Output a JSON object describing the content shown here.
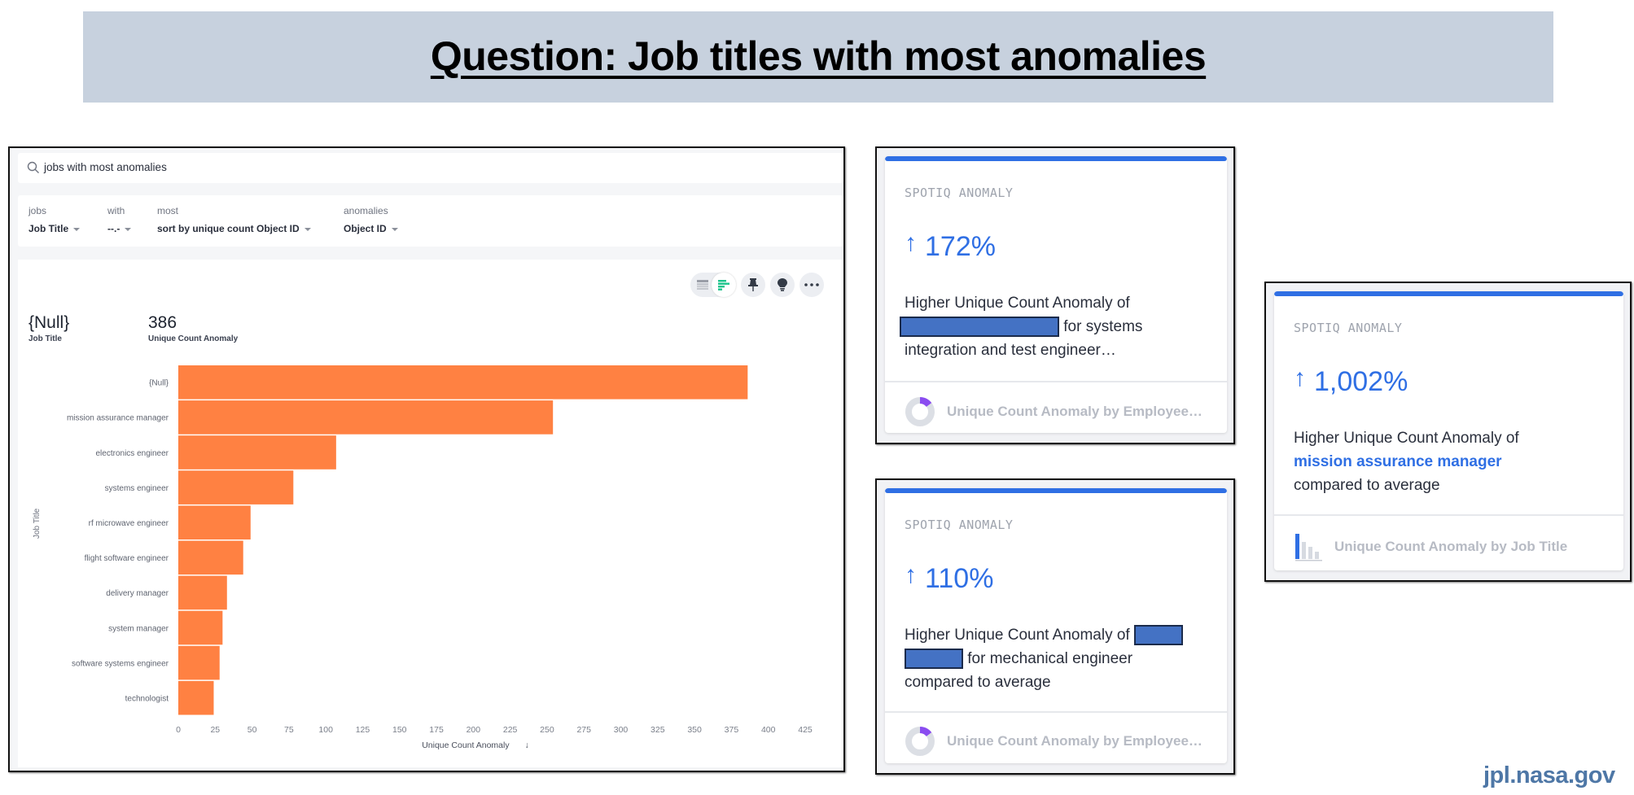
{
  "banner": {
    "title": "Question: Job titles with most anomalies"
  },
  "search": {
    "query": "jobs with most anomalies",
    "icon": "search-icon"
  },
  "filters": [
    {
      "label": "jobs",
      "value": "Job Title"
    },
    {
      "label": "with",
      "value": "--.-"
    },
    {
      "label": "most",
      "value": "sort by unique count Object ID"
    },
    {
      "label": "anomalies",
      "value": "Object ID"
    }
  ],
  "toolbar": {
    "icons": [
      "table-icon",
      "bar-chart-icon",
      "pin-icon",
      "lightbulb-icon",
      "more-icon"
    ]
  },
  "kpis": [
    {
      "value": "{Null}",
      "label": "Job Title"
    },
    {
      "value": "386",
      "label": "Unique Count Anomaly"
    }
  ],
  "chart_data": {
    "type": "bar",
    "orientation": "horizontal",
    "categories": [
      "{Null}",
      "mission assurance manager",
      "electronics engineer",
      "systems engineer",
      "rf microwave engineer",
      "flight software engineer",
      "delivery manager",
      "system manager",
      "software systems engineer",
      "technologist"
    ],
    "values": [
      386,
      254,
      107,
      78,
      49,
      44,
      33,
      30,
      28,
      24
    ],
    "xlabel": "Unique Count Anomaly",
    "xlabel_sort_icon": "↓",
    "ylabel": "Job Title",
    "xlim": [
      0,
      425
    ],
    "xticks": [
      "0",
      "25",
      "50",
      "75",
      "100",
      "125",
      "150",
      "175",
      "200",
      "225",
      "250",
      "275",
      "300",
      "325",
      "350",
      "375",
      "400",
      "425"
    ],
    "bar_color": "#ff8142",
    "grid": false
  },
  "cards": [
    {
      "kicker": "SPOTIQ ANOMALY",
      "arrow": "↑",
      "percent": "172%",
      "text_1": "Higher Unique Count Anomaly of",
      "text_2": "for systems",
      "text_3": "integration and test engineer…",
      "footer": "Unique Count Anomaly by Employee…",
      "footer_icon": "donut-chart-icon"
    },
    {
      "kicker": "SPOTIQ ANOMALY",
      "arrow": "↑",
      "percent": "110%",
      "text_1": "Higher Unique Count Anomaly of",
      "text_2": "for mechanical engineer",
      "text_3": "compared to average",
      "footer": "Unique Count Anomaly by Employee…",
      "footer_icon": "donut-chart-icon"
    },
    {
      "kicker": "SPOTIQ ANOMALY",
      "arrow": "↑",
      "percent": "1,002%",
      "text_1": "Higher Unique Count Anomaly of",
      "text_2": "mission assurance manager",
      "text_3": "compared to average",
      "footer": "Unique Count Anomaly by Job Title",
      "footer_icon": "bar-chart-icon"
    }
  ],
  "colors": {
    "accent": "#2f6fe4",
    "bar": "#ff8142",
    "redaction": "#4472c4",
    "banner": "#c7d1de"
  },
  "footer": {
    "brand": "jpl.nasa.gov"
  }
}
